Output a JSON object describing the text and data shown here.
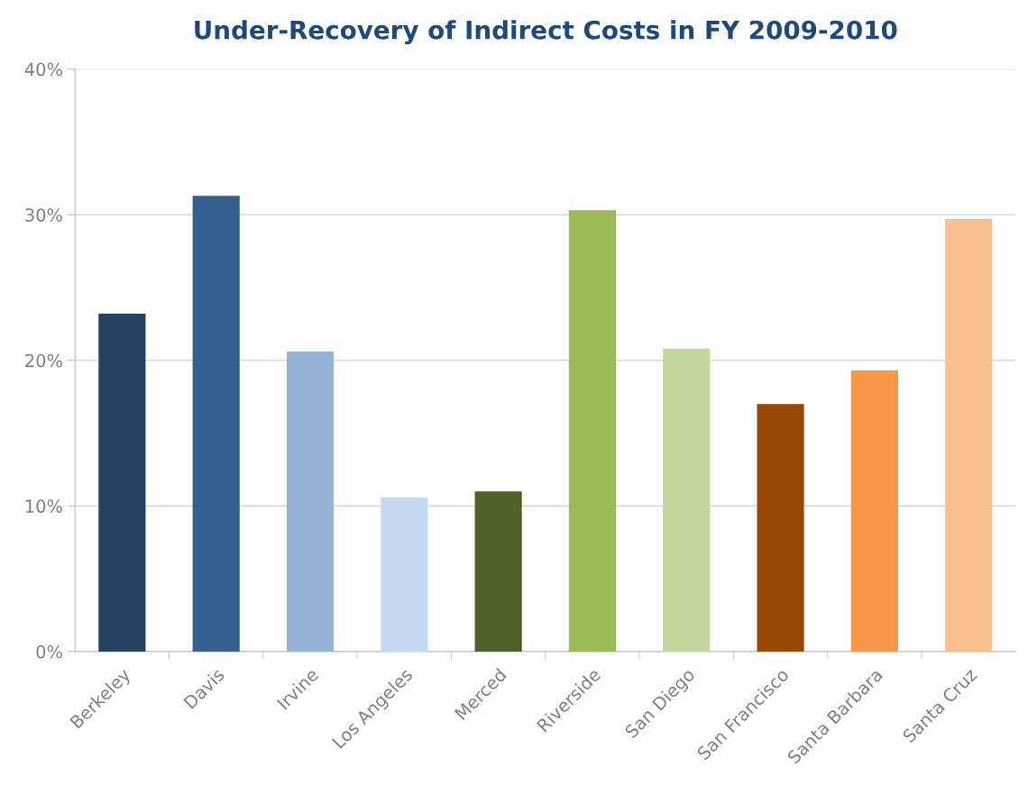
{
  "chart_data": {
    "type": "bar",
    "title": "Under-Recovery of Indirect Costs in FY 2009-2010",
    "categories": [
      "Berkeley",
      "Davis",
      "Irvine",
      "Los Angeles",
      "Merced",
      "Riverside",
      "San Diego",
      "San Francisco",
      "Santa Barbara",
      "Santa Cruz"
    ],
    "values": [
      23.2,
      31.3,
      20.6,
      10.6,
      11.0,
      30.3,
      20.8,
      17.0,
      19.3,
      29.7
    ],
    "colors": [
      "#264161",
      "#366092",
      "#95b3d7",
      "#c6d9f1",
      "#4f6228",
      "#9bbb59",
      "#c3d69b",
      "#974806",
      "#f79646",
      "#fac090"
    ],
    "ylim": [
      0,
      40
    ],
    "yticks": [
      {
        "value": 0,
        "label": "0%"
      },
      {
        "value": 10,
        "label": "10%"
      },
      {
        "value": 20,
        "label": "20%"
      },
      {
        "value": 30,
        "label": "30%"
      },
      {
        "value": 40,
        "label": "40%"
      }
    ],
    "grid": "y",
    "legend": false
  }
}
